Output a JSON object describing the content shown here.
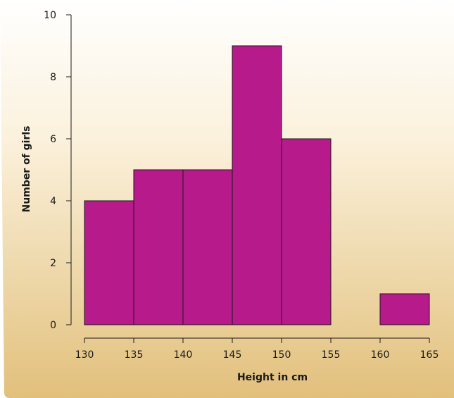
{
  "colors": {
    "bar_fill": "#b71a8b",
    "bg_top": "#ffffff",
    "bg_bottom": "#e2c07c"
  },
  "chart_data": {
    "type": "bar",
    "subtype": "histogram",
    "title": "",
    "xlabel": "Height in cm",
    "ylabel": "Number of girls",
    "bins": [
      {
        "from": 130,
        "to": 135,
        "value": 4
      },
      {
        "from": 135,
        "to": 140,
        "value": 5
      },
      {
        "from": 140,
        "to": 145,
        "value": 5
      },
      {
        "from": 145,
        "to": 150,
        "value": 9
      },
      {
        "from": 150,
        "to": 155,
        "value": 6
      },
      {
        "from": 155,
        "to": 160,
        "value": 0
      },
      {
        "from": 160,
        "to": 165,
        "value": 1
      }
    ],
    "xticks": [
      130,
      135,
      140,
      145,
      150,
      155,
      160,
      165
    ],
    "yticks": [
      0,
      2,
      4,
      6,
      8,
      10
    ],
    "xlim": [
      130,
      165
    ],
    "ylim": [
      0,
      10
    ],
    "grid": false,
    "legend": "none"
  }
}
